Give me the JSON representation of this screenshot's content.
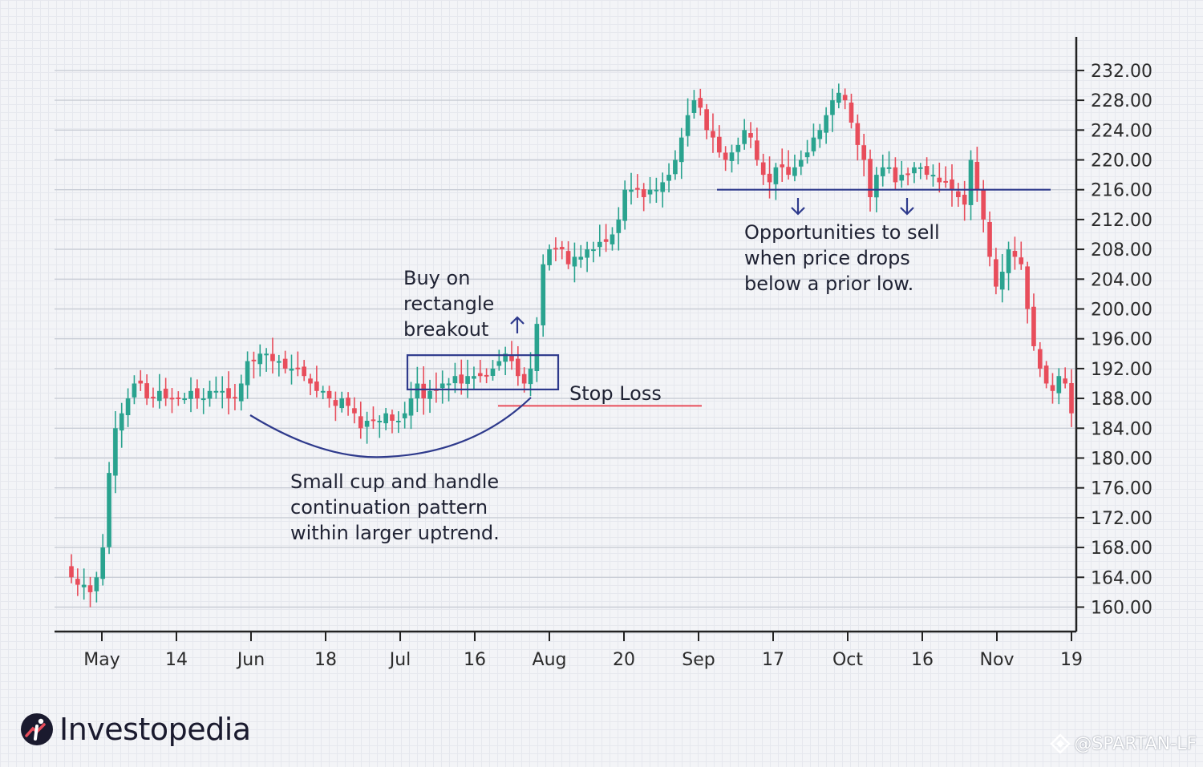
{
  "chart_data": {
    "type": "candlestick",
    "y_ticks": [
      160,
      164,
      168,
      172,
      176,
      180,
      184,
      188,
      192,
      196,
      200,
      204,
      208,
      212,
      216,
      220,
      224,
      228,
      232
    ],
    "y_tick_labels": [
      "160.00",
      "164.00",
      "168.00",
      "172.00",
      "176.00",
      "180.00",
      "184.00",
      "188.00",
      "192.00",
      "196.00",
      "200.00",
      "204.00",
      "208.00",
      "212.00",
      "216.00",
      "220.00",
      "224.00",
      "228.00",
      "232.00"
    ],
    "ylim": [
      157,
      236
    ],
    "x_labels": [
      "May",
      "14",
      "Jun",
      "18",
      "Jul",
      "16",
      "Aug",
      "20",
      "Sep",
      "17",
      "Oct",
      "16",
      "Nov",
      "19"
    ],
    "up_color": "#2aa38f",
    "down_color": "#e84d5b",
    "closes": [
      164,
      163,
      163,
      162,
      164,
      168,
      178,
      184,
      186,
      188,
      190,
      190,
      188,
      188,
      189,
      188,
      188,
      188,
      188,
      189,
      188,
      188,
      189,
      189,
      189,
      188,
      188,
      190,
      193,
      193,
      194,
      194,
      193,
      193,
      192,
      192,
      192,
      191,
      190,
      189,
      189,
      188,
      187,
      188,
      187,
      186,
      184,
      185,
      185,
      185,
      186,
      185,
      185,
      186,
      188,
      190,
      188,
      189,
      189,
      190,
      190,
      191,
      190,
      191,
      191,
      191,
      191,
      192,
      193,
      194,
      193,
      191,
      190,
      192,
      198,
      206,
      208,
      208,
      208,
      206,
      207,
      207,
      208,
      208,
      209,
      209,
      210,
      212,
      216,
      216,
      216,
      215,
      216,
      216,
      217,
      218,
      220,
      223,
      226,
      228,
      227,
      224,
      223,
      221,
      220,
      221,
      222,
      224,
      223,
      220,
      218,
      217,
      219,
      219,
      218,
      219,
      220,
      221,
      223,
      224,
      226,
      228,
      229,
      228,
      225,
      222,
      220,
      215,
      218,
      219,
      219,
      217,
      218,
      218,
      219,
      219,
      218,
      218,
      217,
      217,
      216,
      215,
      214,
      220,
      216,
      212,
      207,
      203,
      205,
      208,
      207,
      206,
      200,
      195,
      192,
      190,
      189,
      191,
      190,
      186
    ],
    "annotations": {
      "breakout": [
        "Buy on",
        "rectangle",
        "breakout"
      ],
      "stop_loss": "Stop Loss",
      "cup": [
        "Small cup and handle",
        "continuation pattern",
        "within larger uptrend."
      ],
      "sell": [
        "Opportunities to sell",
        "when price drops",
        "below a prior low."
      ]
    },
    "stop_loss_level": 187,
    "sell_line_level": 216,
    "colors": {
      "annotation": "#2e3a8c",
      "stop_loss": "#e84d5b",
      "axis": "#222222"
    }
  },
  "brand": {
    "logo_text": "Investopedia"
  },
  "watermark": {
    "text": "@SPARTAN-LF"
  }
}
